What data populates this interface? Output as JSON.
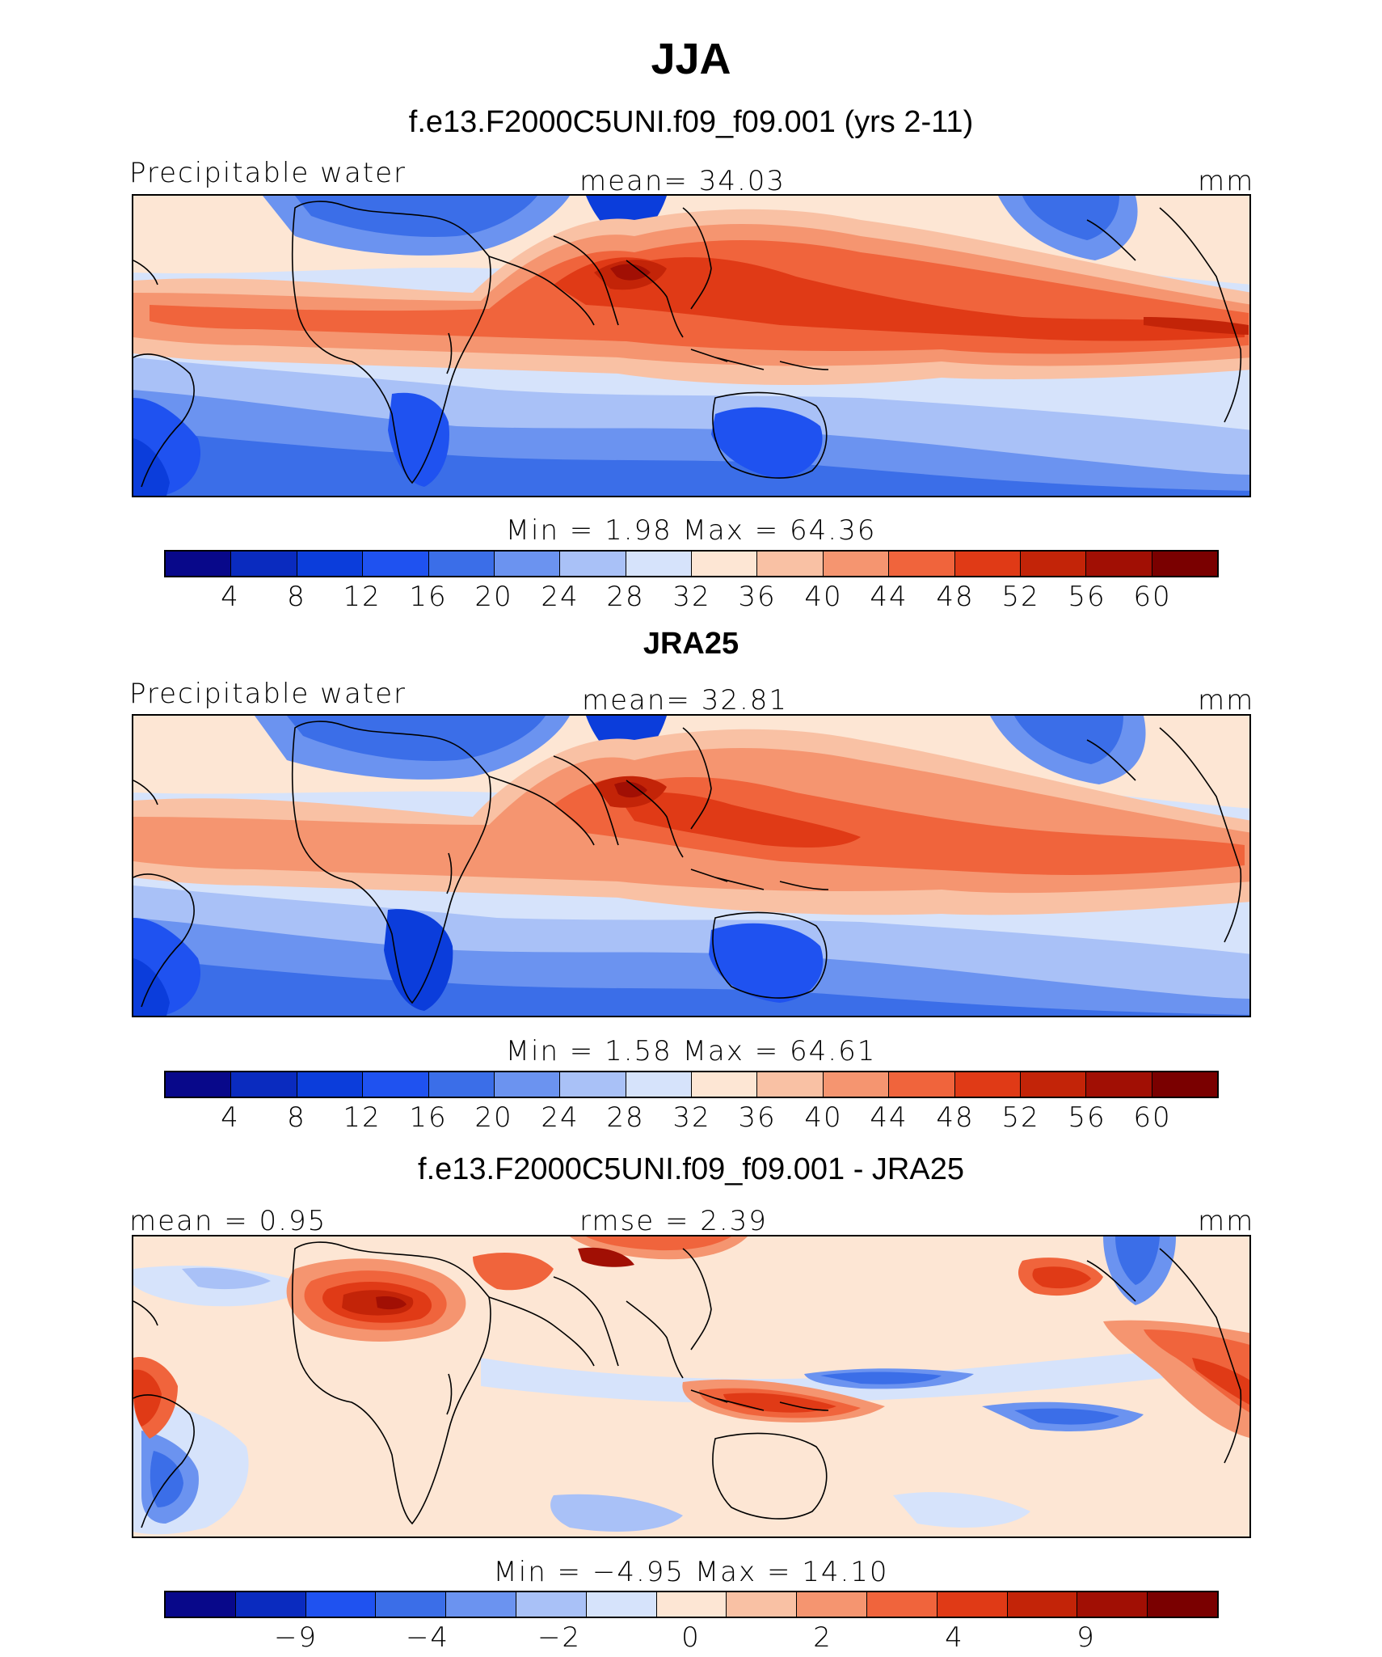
{
  "figure": {
    "title": "JJA"
  },
  "panels": [
    {
      "case_title": "f.e13.F2000C5UNI.f09_f09.001 (yrs 2-11)",
      "left_label": "Precipitable water",
      "center_label": "mean=   34.03",
      "right_label": "mm",
      "minmax_label": "Min  =     1.98  Max  =    64.36",
      "colorbar_ticks": [
        "4",
        "8",
        "12",
        "16",
        "20",
        "24",
        "28",
        "32",
        "36",
        "40",
        "44",
        "48",
        "52",
        "56",
        "60"
      ]
    },
    {
      "case_title": "JRA25",
      "left_label": "Precipitable water",
      "center_label": "mean=   32.81",
      "right_label": "mm",
      "minmax_label": "Min  =     1.58  Max  =    64.61",
      "colorbar_ticks": [
        "4",
        "8",
        "12",
        "16",
        "20",
        "24",
        "28",
        "32",
        "36",
        "40",
        "44",
        "48",
        "52",
        "56",
        "60"
      ]
    },
    {
      "case_title": "f.e13.F2000C5UNI.f09_f09.001 - JRA25",
      "left_label": "mean =    0.95",
      "center_label": "rmse =    2.39",
      "right_label": "mm",
      "minmax_label": "Min  =   −4.95  Max  =    14.10",
      "colorbar_ticks": [
        "−9",
        "−4",
        "−2",
        "0",
        "2",
        "4",
        "9"
      ]
    }
  ],
  "colors": {
    "abs_scale": [
      "#08088a",
      "#0a2bbf",
      "#0b3ddb",
      "#1f52f0",
      "#3b6ee8",
      "#6b93f0",
      "#a9c1f7",
      "#d6e3fb",
      "#fde6d4",
      "#f9c1a4",
      "#f59570",
      "#f0643c",
      "#e03a16",
      "#c32408",
      "#a10f04",
      "#7a0000"
    ],
    "diff_scale": [
      "#08088a",
      "#0a2bbf",
      "#1f52f0",
      "#3b6ee8",
      "#6b93f0",
      "#a9c1f7",
      "#d6e3fb",
      "#fde6d4",
      "#f9c1a4",
      "#f59570",
      "#f0643c",
      "#e03a16",
      "#c32408",
      "#a10f04",
      "#7a0000"
    ]
  }
}
